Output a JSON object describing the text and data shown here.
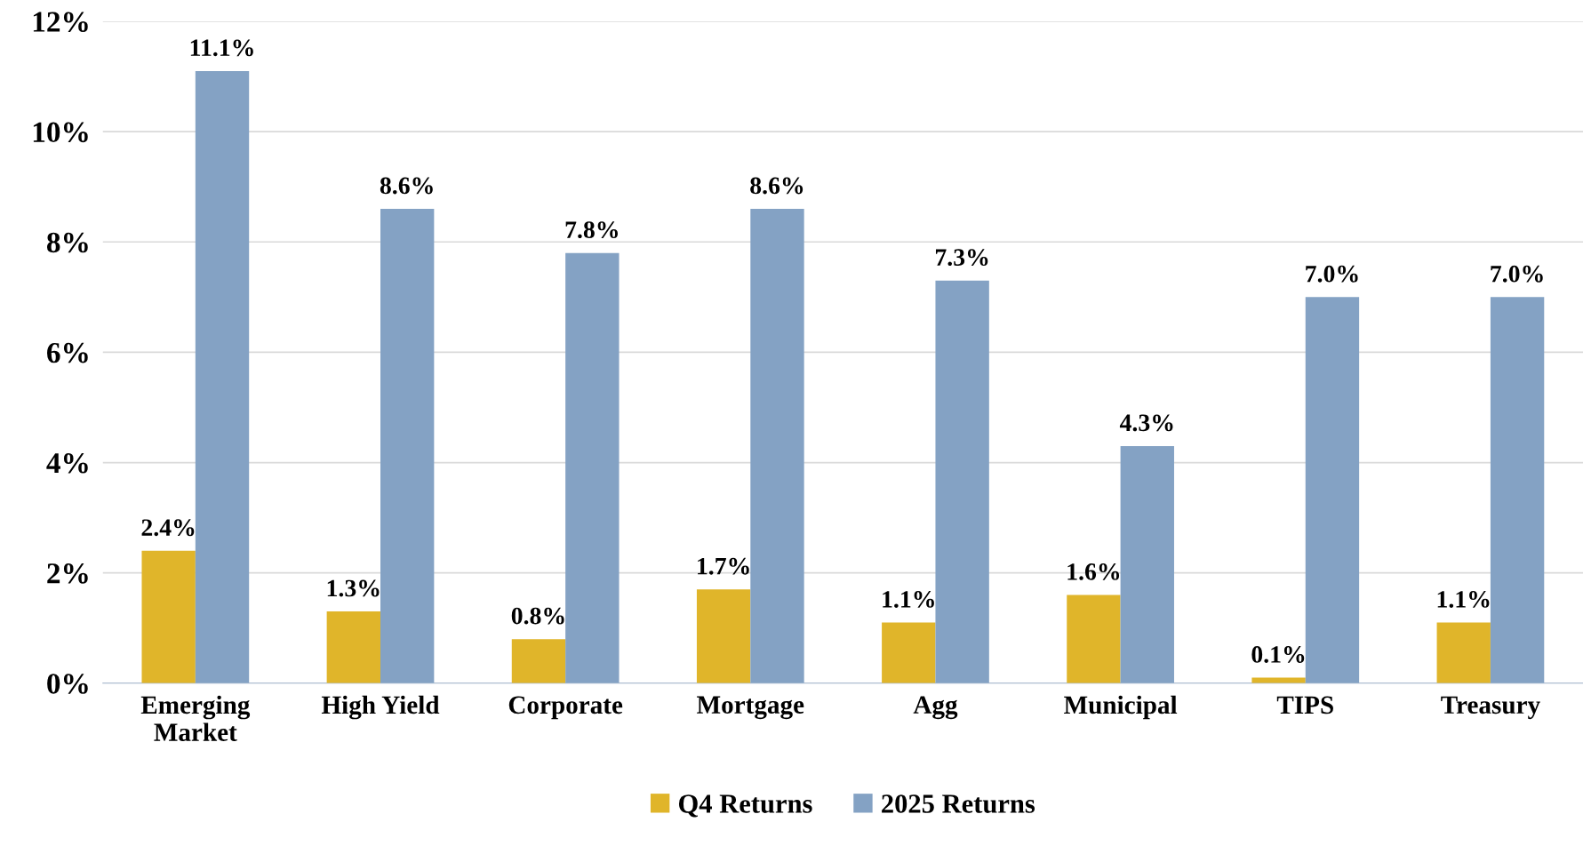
{
  "chart_data": {
    "type": "bar",
    "categories": [
      "Emerging\nMarket",
      "High Yield",
      "Corporate",
      "Mortgage",
      "Agg",
      "Municipal",
      "TIPS",
      "Treasury"
    ],
    "series": [
      {
        "name": "Q4 Returns",
        "color": "#e0b52a",
        "values": [
          2.4,
          1.3,
          0.8,
          1.7,
          1.1,
          1.6,
          0.1,
          1.1
        ]
      },
      {
        "name": "2025 Returns",
        "color": "#84a2c4",
        "values": [
          11.1,
          8.6,
          7.8,
          8.6,
          7.3,
          4.3,
          7.0,
          7.0
        ]
      }
    ],
    "ylim": [
      0,
      12
    ],
    "yticks": [
      {
        "value": 0,
        "label": "0%"
      },
      {
        "value": 2,
        "label": "2%"
      },
      {
        "value": 4,
        "label": "4%"
      },
      {
        "value": 6,
        "label": "6%"
      },
      {
        "value": 8,
        "label": "8%"
      },
      {
        "value": 10,
        "label": "10%"
      },
      {
        "value": 12,
        "label": "12%"
      }
    ],
    "value_labels": [
      [
        "2.4%",
        "1.3%",
        "0.8%",
        "1.7%",
        "1.1%",
        "1.6%",
        "0.1%",
        "1.1%"
      ],
      [
        "11.1%",
        "8.6%",
        "7.8%",
        "8.6%",
        "7.3%",
        "4.3%",
        "7.0%",
        "7.0%"
      ]
    ],
    "grid": "y",
    "legend": "bottom"
  }
}
